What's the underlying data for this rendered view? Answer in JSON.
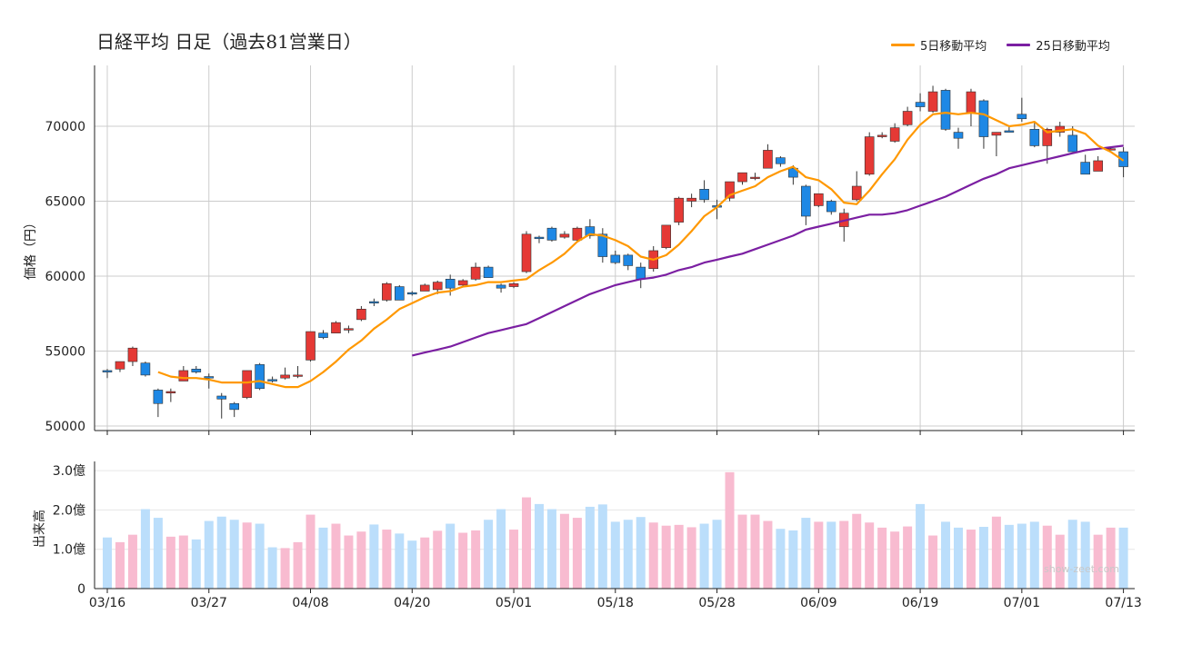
{
  "title": "日経平均  日足（過去81営業日）",
  "watermark": "show-zeet.com",
  "colors": {
    "up": "#e53935",
    "down": "#1e88e5",
    "ma5": "#ff9800",
    "ma25": "#7b1fa2",
    "vol_up": "#f8bbd0",
    "vol_down": "#bbdefb",
    "grid": "#cccccc"
  },
  "chart_data": [
    {
      "type": "candlestick",
      "ylabel": "価格（円）",
      "ylim": [
        50000,
        73500
      ],
      "yticks": [
        "50000",
        "55000",
        "60000",
        "65000",
        "70000"
      ],
      "xticks": [
        "03/16",
        "03/27",
        "04/08",
        "04/20",
        "05/01",
        "05/18",
        "05/28",
        "06/09",
        "06/19",
        "07/01",
        "07/13"
      ],
      "xtick_index": [
        0,
        8,
        16,
        24,
        32,
        40,
        48,
        56,
        64,
        72,
        80
      ],
      "grid": true,
      "legend_position": "top-right",
      "legend": [
        "5日移動平均",
        "25日移動平均"
      ],
      "candles": [
        [
          53700,
          53800,
          53200,
          53600
        ],
        [
          53800,
          54300,
          53600,
          54300
        ],
        [
          54300,
          55300,
          54000,
          55200
        ],
        [
          54200,
          54300,
          53300,
          53400
        ],
        [
          52400,
          52500,
          50600,
          51500
        ],
        [
          52200,
          52500,
          51600,
          52300
        ],
        [
          53000,
          54000,
          53000,
          53700
        ],
        [
          53800,
          54000,
          53500,
          53600
        ],
        [
          53300,
          53500,
          52500,
          53200
        ],
        [
          52000,
          52200,
          50500,
          51800
        ],
        [
          51500,
          51600,
          50600,
          51100
        ],
        [
          51900,
          53700,
          51800,
          53700
        ],
        [
          54100,
          54200,
          52400,
          52500
        ],
        [
          53100,
          53300,
          52900,
          53000
        ],
        [
          53200,
          53900,
          53100,
          53400
        ],
        [
          53400,
          54000,
          53200,
          53400
        ],
        [
          54400,
          56300,
          54300,
          56300
        ],
        [
          56200,
          56400,
          55800,
          55900
        ],
        [
          56200,
          57000,
          56200,
          56900
        ],
        [
          56400,
          56700,
          56200,
          56500
        ],
        [
          57100,
          58000,
          57000,
          57800
        ],
        [
          58300,
          58500,
          58000,
          58200
        ],
        [
          58400,
          59600,
          58300,
          59500
        ],
        [
          59300,
          59400,
          58400,
          58400
        ],
        [
          58900,
          59000,
          58700,
          58800
        ],
        [
          59000,
          59500,
          59000,
          59400
        ],
        [
          59100,
          59700,
          58800,
          59600
        ],
        [
          59800,
          60100,
          58700,
          59200
        ],
        [
          59400,
          59800,
          59300,
          59700
        ],
        [
          59800,
          60900,
          59700,
          60600
        ],
        [
          60600,
          60700,
          59900,
          59900
        ],
        [
          59400,
          59500,
          58900,
          59200
        ],
        [
          59300,
          59600,
          59200,
          59500
        ],
        [
          60300,
          63000,
          60200,
          62800
        ],
        [
          62600,
          62700,
          62200,
          62500
        ],
        [
          63200,
          63300,
          62300,
          62400
        ],
        [
          62600,
          63000,
          62500,
          62800
        ],
        [
          62400,
          63300,
          62300,
          63200
        ],
        [
          63300,
          63800,
          62500,
          62700
        ],
        [
          62800,
          63200,
          60900,
          61300
        ],
        [
          61400,
          61700,
          60800,
          60900
        ],
        [
          61400,
          61500,
          60400,
          60700
        ],
        [
          60600,
          60900,
          59200,
          59800
        ],
        [
          60500,
          62000,
          60300,
          61700
        ],
        [
          61900,
          63400,
          61800,
          63400
        ],
        [
          63600,
          65300,
          63400,
          65200
        ],
        [
          65000,
          65500,
          64600,
          65200
        ],
        [
          65800,
          66400,
          64900,
          65100
        ],
        [
          64700,
          65100,
          63800,
          64600
        ],
        [
          65200,
          66300,
          65000,
          66300
        ],
        [
          66300,
          66900,
          66100,
          66900
        ],
        [
          66600,
          66900,
          66400,
          66600
        ],
        [
          67200,
          68800,
          67200,
          68400
        ],
        [
          67900,
          68000,
          67300,
          67500
        ],
        [
          67200,
          67400,
          66100,
          66600
        ],
        [
          66000,
          66100,
          63400,
          64000
        ],
        [
          64700,
          65500,
          64600,
          65500
        ],
        [
          65000,
          65100,
          64100,
          64300
        ],
        [
          63300,
          64500,
          62300,
          64200
        ],
        [
          65100,
          67000,
          65000,
          66000
        ],
        [
          66800,
          69600,
          66700,
          69300
        ],
        [
          69300,
          69600,
          69200,
          69400
        ],
        [
          69000,
          70200,
          68900,
          69900
        ],
        [
          70100,
          71300,
          70000,
          71000
        ],
        [
          71600,
          72200,
          71000,
          71300
        ],
        [
          71000,
          72700,
          70900,
          72300
        ],
        [
          72400,
          72500,
          69700,
          69800
        ],
        [
          69600,
          69900,
          68500,
          69200
        ],
        [
          70900,
          72500,
          70000,
          72300
        ],
        [
          71700,
          71800,
          68500,
          69300
        ],
        [
          69400,
          69600,
          68000,
          69600
        ],
        [
          69700,
          70000,
          69600,
          69600
        ],
        [
          70800,
          71900,
          70300,
          70500
        ],
        [
          69800,
          70300,
          68600,
          68700
        ],
        [
          68700,
          69900,
          67500,
          69800
        ],
        [
          69600,
          70300,
          69300,
          70000
        ],
        [
          69400,
          70000,
          68300,
          68300
        ],
        [
          67600,
          68100,
          66800,
          66800
        ],
        [
          67000,
          68000,
          67000,
          67700
        ],
        [
          68500,
          68600,
          68400,
          68500
        ],
        [
          68300,
          68600,
          66600,
          67300
        ]
      ],
      "ma5": [
        null,
        null,
        null,
        null,
        53600,
        53300,
        53200,
        53200,
        53100,
        52900,
        52900,
        52900,
        53000,
        52800,
        52600,
        52600,
        53000,
        53600,
        54300,
        55100,
        55700,
        56500,
        57100,
        57800,
        58200,
        58600,
        58900,
        59000,
        59300,
        59400,
        59600,
        59600,
        59700,
        59800,
        60400,
        60900,
        61500,
        62300,
        62800,
        62700,
        62400,
        62000,
        61300,
        61100,
        61400,
        62100,
        63000,
        64000,
        64600,
        65400,
        65700,
        66000,
        66600,
        67000,
        67300,
        66600,
        66400,
        65800,
        64900,
        64800,
        65700,
        66800,
        67800,
        69100,
        70100,
        70800,
        70900,
        70800,
        70900,
        70800,
        70400,
        70000,
        70100,
        70300,
        69600,
        69700,
        69800,
        69500,
        68700,
        68300,
        67700
      ],
      "ma25": [
        null,
        null,
        null,
        null,
        null,
        null,
        null,
        null,
        null,
        null,
        null,
        null,
        null,
        null,
        null,
        null,
        null,
        null,
        null,
        null,
        null,
        null,
        null,
        null,
        54700,
        54900,
        55100,
        55300,
        55600,
        55900,
        56200,
        56400,
        56600,
        56800,
        57200,
        57600,
        58000,
        58400,
        58800,
        59100,
        59400,
        59600,
        59800,
        59900,
        60100,
        60400,
        60600,
        60900,
        61100,
        61300,
        61500,
        61800,
        62100,
        62400,
        62700,
        63100,
        63300,
        63500,
        63700,
        63900,
        64100,
        64100,
        64200,
        64400,
        64700,
        65000,
        65300,
        65700,
        66100,
        66500,
        66800,
        67200,
        67400,
        67600,
        67800,
        68000,
        68200,
        68400,
        68500,
        68600,
        68700
      ]
    },
    {
      "type": "bar",
      "ylabel": "出来高",
      "ylim": [
        0,
        3.0
      ],
      "yticks": [
        "0",
        "1.0億",
        "2.0億",
        "3.0億"
      ],
      "unit": "億",
      "values": [
        1.3,
        1.18,
        1.37,
        2.02,
        1.8,
        1.32,
        1.35,
        1.25,
        1.72,
        1.83,
        1.75,
        1.68,
        1.65,
        1.05,
        1.03,
        1.18,
        1.88,
        1.55,
        1.65,
        1.35,
        1.45,
        1.63,
        1.5,
        1.4,
        1.22,
        1.3,
        1.47,
        1.65,
        1.42,
        1.48,
        1.75,
        2.02,
        1.5,
        2.32,
        2.15,
        2.02,
        1.9,
        1.8,
        2.08,
        2.14,
        1.7,
        1.75,
        1.82,
        1.68,
        1.6,
        1.62,
        1.56,
        1.65,
        1.75,
        2.96,
        1.88,
        1.88,
        1.72,
        1.52,
        1.48,
        1.8,
        1.7,
        1.7,
        1.72,
        1.9,
        1.68,
        1.55,
        1.45,
        1.58,
        2.15,
        1.35,
        1.7,
        1.55,
        1.5,
        1.57,
        1.83,
        1.62,
        1.65,
        1.7,
        1.6,
        1.37,
        1.75,
        1.7,
        1.37,
        1.55,
        1.55
      ]
    }
  ]
}
